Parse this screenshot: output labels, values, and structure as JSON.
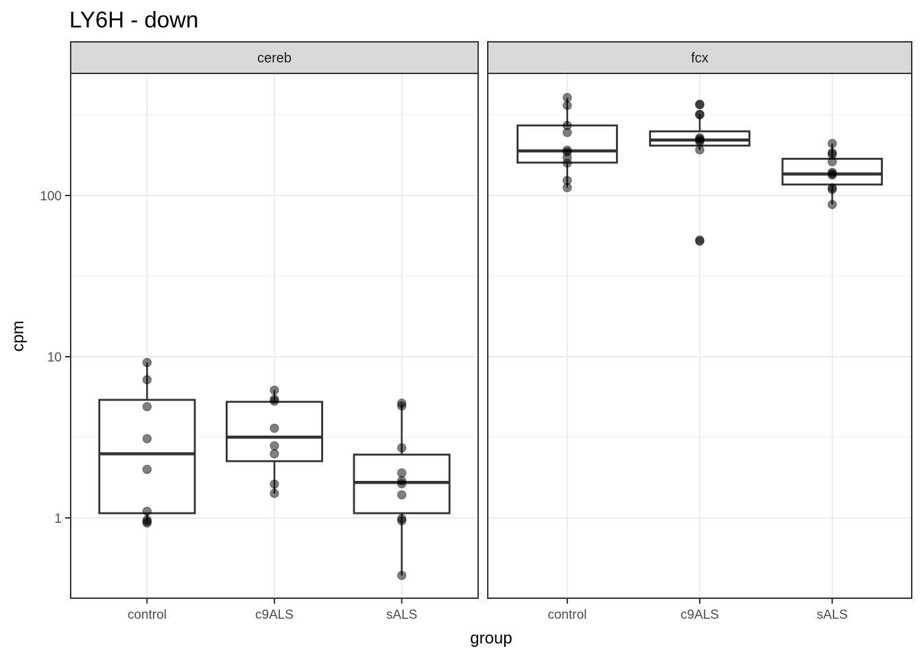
{
  "title": "LY6H - down",
  "axes": {
    "x_label": "group",
    "y_label": "cpm"
  },
  "chart_data": {
    "type": "boxplot",
    "y_scale": "log10",
    "ylim": [
      0.33,
      550
    ],
    "grid": true,
    "y_ticks": [
      {
        "value": 100,
        "label": "100"
      },
      {
        "value": 10,
        "label": "10"
      },
      {
        "value": 1,
        "label": "1"
      }
    ],
    "y_minor_gridlines": [
      3.162,
      31.62,
      316.2
    ],
    "x_categories": [
      "control",
      "c9ALS",
      "sALS"
    ],
    "facets": [
      {
        "label": "cereb",
        "groups": [
          {
            "category": "control",
            "box": {
              "whisker_low": 0.95,
              "q1": 1.07,
              "median": 2.5,
              "q3": 5.4,
              "whisker_high": 9.2
            },
            "points": [
              9.2,
              7.2,
              4.9,
              3.1,
              2.0,
              1.1,
              0.97,
              0.95,
              0.93
            ]
          },
          {
            "category": "c9ALS",
            "box": {
              "whisker_low": 1.42,
              "q1": 2.25,
              "median": 3.17,
              "q3": 5.25,
              "whisker_high": 6.2
            },
            "points": [
              6.2,
              5.45,
              5.3,
              3.6,
              2.8,
              2.5,
              1.62,
              1.42
            ]
          },
          {
            "category": "sALS",
            "box": {
              "whisker_low": 0.44,
              "q1": 1.07,
              "median": 1.66,
              "q3": 2.47,
              "whisker_high": 5.1
            },
            "points": [
              5.15,
              4.95,
              2.72,
              1.9,
              1.7,
              1.63,
              1.39,
              0.99,
              0.96,
              0.44
            ]
          }
        ]
      },
      {
        "label": "fcx",
        "groups": [
          {
            "category": "control",
            "box": {
              "whisker_low": 112,
              "q1": 160,
              "median": 189,
              "q3": 272,
              "whisker_high": 403
            },
            "points": [
              405,
              362,
              272,
              246,
              191,
              186,
              172,
              159,
              124,
              112
            ]
          },
          {
            "category": "c9ALS",
            "box": {
              "whisker_low": 192,
              "q1": 204,
              "median": 221,
              "q3": 250,
              "whisker_high": 319
            },
            "points": [
              368,
              366,
              319,
              317,
              228,
              224,
              220,
              216,
              192,
              53,
              52
            ]
          },
          {
            "category": "sALS",
            "box": {
              "whisker_low": 88,
              "q1": 117,
              "median": 136,
              "q3": 169,
              "whisker_high": 210
            },
            "points": [
              210,
              184,
              180,
              162,
              139,
              136.5,
              134,
              111.5,
              109,
              88
            ]
          }
        ]
      }
    ]
  },
  "colors": {
    "background": "#ffffff",
    "strip_fill": "#d9d9d9",
    "panel_border": "#333333",
    "box_stroke": "#333333",
    "gridline_major": "#ebebeb",
    "gridline_minor": "#f3f3f3",
    "axis_text": "#4d4d4d",
    "tick_mark": "#333333",
    "point": "#000000"
  }
}
